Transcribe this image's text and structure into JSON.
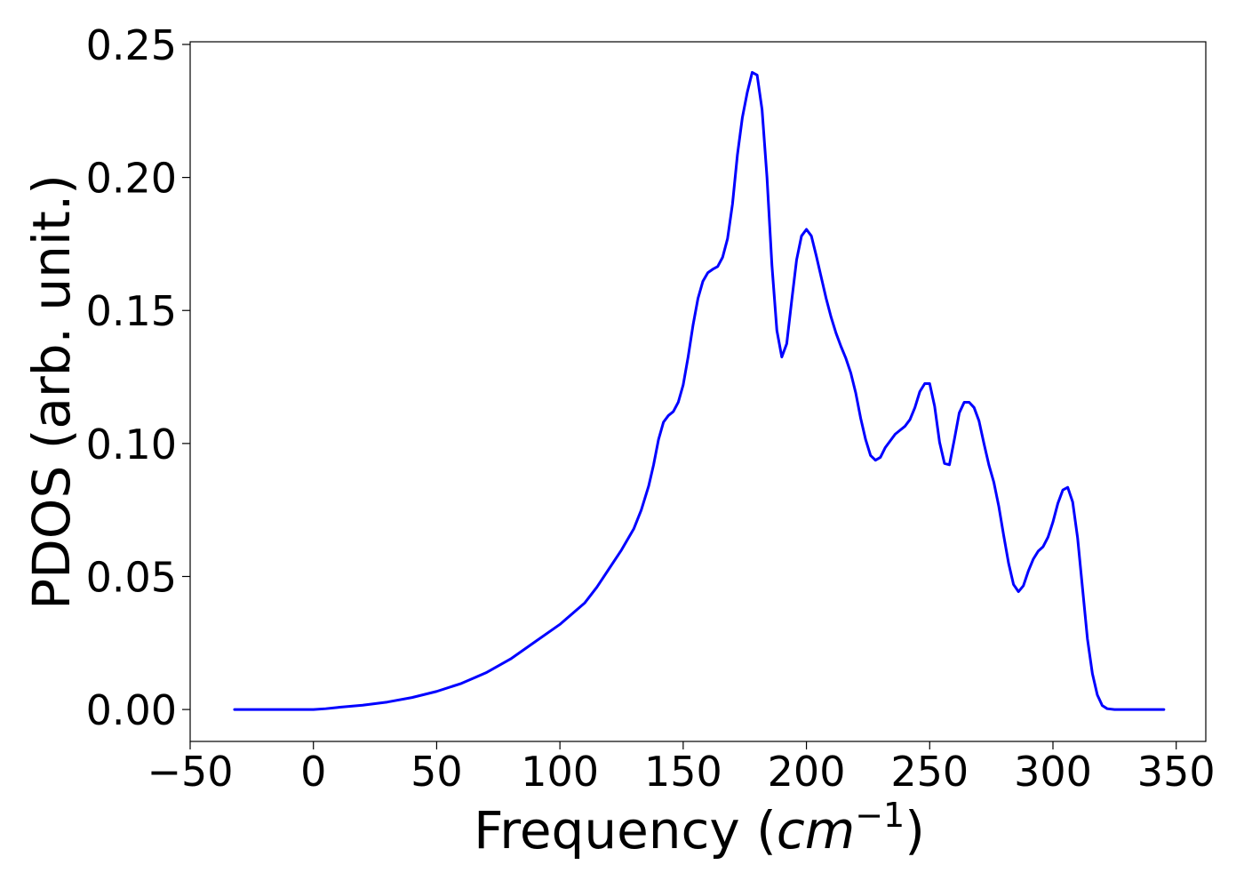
{
  "chart_data": {
    "type": "line",
    "title": "",
    "xlabel": "Frequency",
    "xlabel_unit": "(cm⁻¹)",
    "ylabel": "PDOS (arb. unit.)",
    "xlim": [
      -50,
      362
    ],
    "ylim": [
      -0.012,
      0.251
    ],
    "xticks": [
      -50,
      0,
      50,
      100,
      150,
      200,
      250,
      300,
      350
    ],
    "xtick_labels": [
      "−50",
      "0",
      "50",
      "100",
      "150",
      "200",
      "250",
      "300",
      "350"
    ],
    "yticks": [
      0.0,
      0.05,
      0.1,
      0.15,
      0.2,
      0.25
    ],
    "ytick_labels": [
      "0.00",
      "0.05",
      "0.10",
      "0.15",
      "0.20",
      "0.25"
    ],
    "grid": false,
    "series": [
      {
        "color": "#0000ff",
        "x": [
          -32,
          0,
          5,
          10,
          20,
          30,
          40,
          50,
          60,
          70,
          80,
          90,
          100,
          110,
          115,
          120,
          125,
          130,
          133,
          136,
          138,
          140,
          142,
          144,
          146,
          148,
          150,
          152,
          154,
          156,
          158,
          160,
          162,
          164,
          166,
          168,
          170,
          172,
          174,
          176,
          178,
          180,
          182,
          184,
          186,
          188,
          190,
          192,
          194,
          196,
          198,
          200,
          202,
          204,
          206,
          208,
          210,
          212,
          214,
          216,
          218,
          220,
          222,
          224,
          226,
          228,
          230,
          232,
          234,
          236,
          238,
          240,
          242,
          244,
          246,
          248,
          250,
          252,
          254,
          256,
          258,
          260,
          262,
          264,
          266,
          268,
          270,
          272,
          274,
          276,
          278,
          280,
          282,
          284,
          286,
          288,
          290,
          292,
          294,
          296,
          298,
          300,
          302,
          304,
          306,
          308,
          310,
          312,
          314,
          316,
          318,
          320,
          322,
          325,
          345
        ],
        "y": [
          0.0,
          0.0,
          0.0003,
          0.0008,
          0.0016,
          0.0028,
          0.0045,
          0.0068,
          0.0098,
          0.0138,
          0.019,
          0.0255,
          0.032,
          0.04,
          0.046,
          0.053,
          0.06,
          0.068,
          0.075,
          0.084,
          0.092,
          0.1015,
          0.108,
          0.1105,
          0.112,
          0.1155,
          0.122,
          0.1325,
          0.1445,
          0.1545,
          0.161,
          0.1642,
          0.1655,
          0.1665,
          0.17,
          0.177,
          0.19,
          0.2085,
          0.2225,
          0.232,
          0.2395,
          0.2385,
          0.2255,
          0.2,
          0.167,
          0.1425,
          0.1325,
          0.1375,
          0.1535,
          0.169,
          0.178,
          0.1805,
          0.178,
          0.1705,
          0.1625,
          0.1545,
          0.1475,
          0.1415,
          0.1365,
          0.132,
          0.1265,
          0.119,
          0.1095,
          0.1015,
          0.0955,
          0.0937,
          0.0948,
          0.0985,
          0.101,
          0.1035,
          0.105,
          0.1065,
          0.109,
          0.1135,
          0.1195,
          0.1225,
          0.1225,
          0.114,
          0.1005,
          0.0925,
          0.092,
          0.1015,
          0.1115,
          0.1155,
          0.1155,
          0.1135,
          0.1085,
          0.1,
          0.092,
          0.0855,
          0.0765,
          0.0655,
          0.055,
          0.047,
          0.0443,
          0.0465,
          0.052,
          0.0565,
          0.0595,
          0.0612,
          0.0648,
          0.0705,
          0.0775,
          0.0825,
          0.0835,
          0.078,
          0.0645,
          0.0455,
          0.0265,
          0.0135,
          0.0055,
          0.0015,
          0.0003,
          0.0,
          0.0
        ]
      }
    ]
  }
}
